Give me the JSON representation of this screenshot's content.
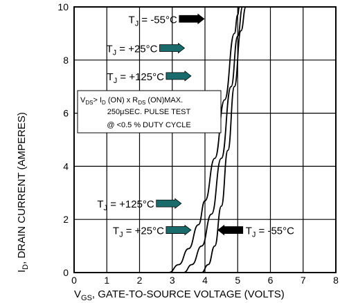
{
  "chart_data": {
    "type": "line",
    "title": "",
    "xlabel": {
      "main": "V",
      "sub": "GS",
      "rest": ", GATE-TO-SOURCE VOLTAGE (VOLTS)"
    },
    "ylabel": {
      "main": "I",
      "sub": "D",
      "rest": ", DRAIN CURRENT (AMPERES)"
    },
    "xlim": [
      0,
      8
    ],
    "ylim": [
      0,
      10
    ],
    "xticks": [
      "0",
      "1",
      "2",
      "3",
      "4",
      "5",
      "6",
      "7",
      "8"
    ],
    "yticks": [
      "0",
      "2",
      "4",
      "6",
      "8",
      "10"
    ],
    "grid": true,
    "series": [
      {
        "name": "TJ = +125°C",
        "x": [
          2.9,
          3.2,
          3.5,
          3.8,
          4.0,
          4.3,
          4.6,
          4.9,
          5.0,
          5.05
        ],
        "y": [
          0,
          0.3,
          0.9,
          1.8,
          2.7,
          4.3,
          6.5,
          9.0,
          9.7,
          10
        ]
      },
      {
        "name": "TJ = +25°C",
        "x": [
          3.35,
          3.6,
          3.9,
          4.2,
          4.5,
          4.8,
          5.0,
          5.15
        ],
        "y": [
          0,
          0.3,
          1.0,
          2.2,
          4.3,
          7.0,
          8.9,
          10
        ]
      },
      {
        "name": "TJ = -55°C",
        "x": [
          3.9,
          4.1,
          4.3,
          4.5,
          4.7,
          4.9,
          5.1,
          5.25
        ],
        "y": [
          0,
          0.3,
          1.0,
          2.5,
          4.6,
          7.0,
          9.1,
          10
        ]
      }
    ],
    "annotations": [
      {
        "label": "-55°C",
        "x": 3.15,
        "y": 9.55,
        "dir": "right",
        "color": "#000000"
      },
      {
        "label": "+25°C",
        "x": 2.55,
        "y": 8.45,
        "dir": "right",
        "color": "#1a6b6b"
      },
      {
        "label": "+125°C",
        "x": 2.75,
        "y": 7.4,
        "dir": "right",
        "color": "#1a6b6b"
      },
      {
        "label": "+125°C",
        "x": 2.45,
        "y": 2.6,
        "dir": "right",
        "color": "#1a6b6b"
      },
      {
        "label": "+25°C",
        "x": 2.75,
        "y": 1.6,
        "dir": "right",
        "color": "#1a6b6b"
      },
      {
        "label": "-55°C",
        "x": 5.2,
        "y": 1.6,
        "dir": "left",
        "color": "#000000"
      }
    ],
    "note": {
      "line1": {
        "a": "V",
        "a_sub": "DS",
        "b": "> I",
        "b_sub": "D",
        "c": " (ON) x  R",
        "c_sub": "DS",
        "d": " (ON)MAX."
      },
      "line2": "250μSEC. PULSE TEST",
      "line3": "@ <0.5 % DUTY CYCLE"
    },
    "tj_prefix": {
      "main": "T",
      "sub": "J",
      "rest": " = "
    }
  }
}
